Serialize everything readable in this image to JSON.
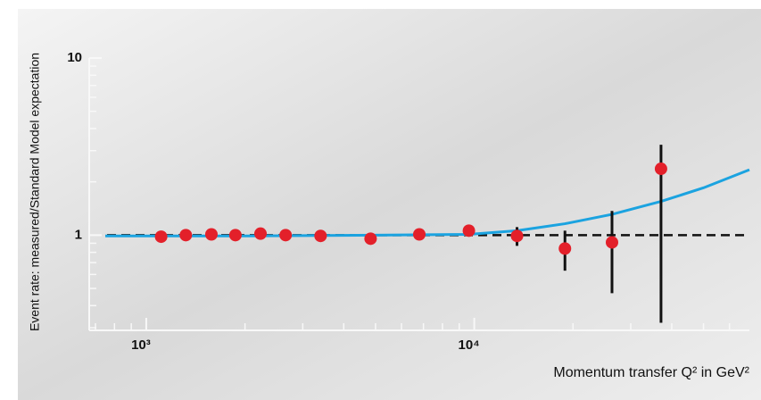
{
  "chart_data": {
    "type": "scatter",
    "xlabel": "Momentum transfer Q² in GeV²",
    "ylabel": "Event rate: measured/Standard Model expectation",
    "xscale": "log",
    "yscale": "log",
    "xlim": [
      670,
      69000
    ],
    "ylim": [
      0.29,
      10
    ],
    "xticks": [
      {
        "value": 1000,
        "label": "10³"
      },
      {
        "value": 10000,
        "label": "10⁴"
      }
    ],
    "yticks": [
      1,
      10
    ],
    "xminorticks": [
      700,
      800,
      900,
      2000,
      3000,
      4000,
      5000,
      6000,
      7000,
      8000,
      9000,
      20000,
      30000,
      40000,
      50000,
      60000
    ],
    "yminorticks": [
      0.3,
      0.4,
      0.5,
      0.6,
      0.7,
      0.8,
      0.9,
      2,
      3,
      4,
      5,
      6,
      7,
      8,
      9
    ],
    "reference_line": {
      "value": 1,
      "color": "#111111",
      "dashed": true
    },
    "series": [
      {
        "type": "scatter",
        "color": "#e3202a",
        "x": [
          1110,
          1320,
          1580,
          1870,
          2230,
          2660,
          3400,
          4830,
          6800,
          9630,
          13500,
          18900,
          26300,
          37100
        ],
        "values": [
          0.98,
          1.0,
          1.01,
          1.0,
          1.02,
          1.0,
          0.99,
          0.955,
          1.01,
          1.06,
          0.99,
          0.84,
          0.91,
          2.37
        ],
        "err_low": [
          null,
          null,
          null,
          null,
          null,
          null,
          null,
          null,
          null,
          null,
          0.87,
          0.63,
          0.47,
          0.32
        ],
        "err_high": [
          null,
          null,
          null,
          null,
          null,
          null,
          null,
          null,
          null,
          null,
          1.11,
          1.06,
          1.37,
          3.24
        ]
      },
      {
        "type": "line",
        "color": "#1ba3e0",
        "x": [
          750,
          2000,
          5000,
          9630,
          13500,
          18900,
          26300,
          37100,
          50000,
          69000
        ],
        "values": [
          0.99,
          0.99,
          1.0,
          1.01,
          1.06,
          1.16,
          1.31,
          1.55,
          1.85,
          2.34
        ]
      }
    ]
  }
}
